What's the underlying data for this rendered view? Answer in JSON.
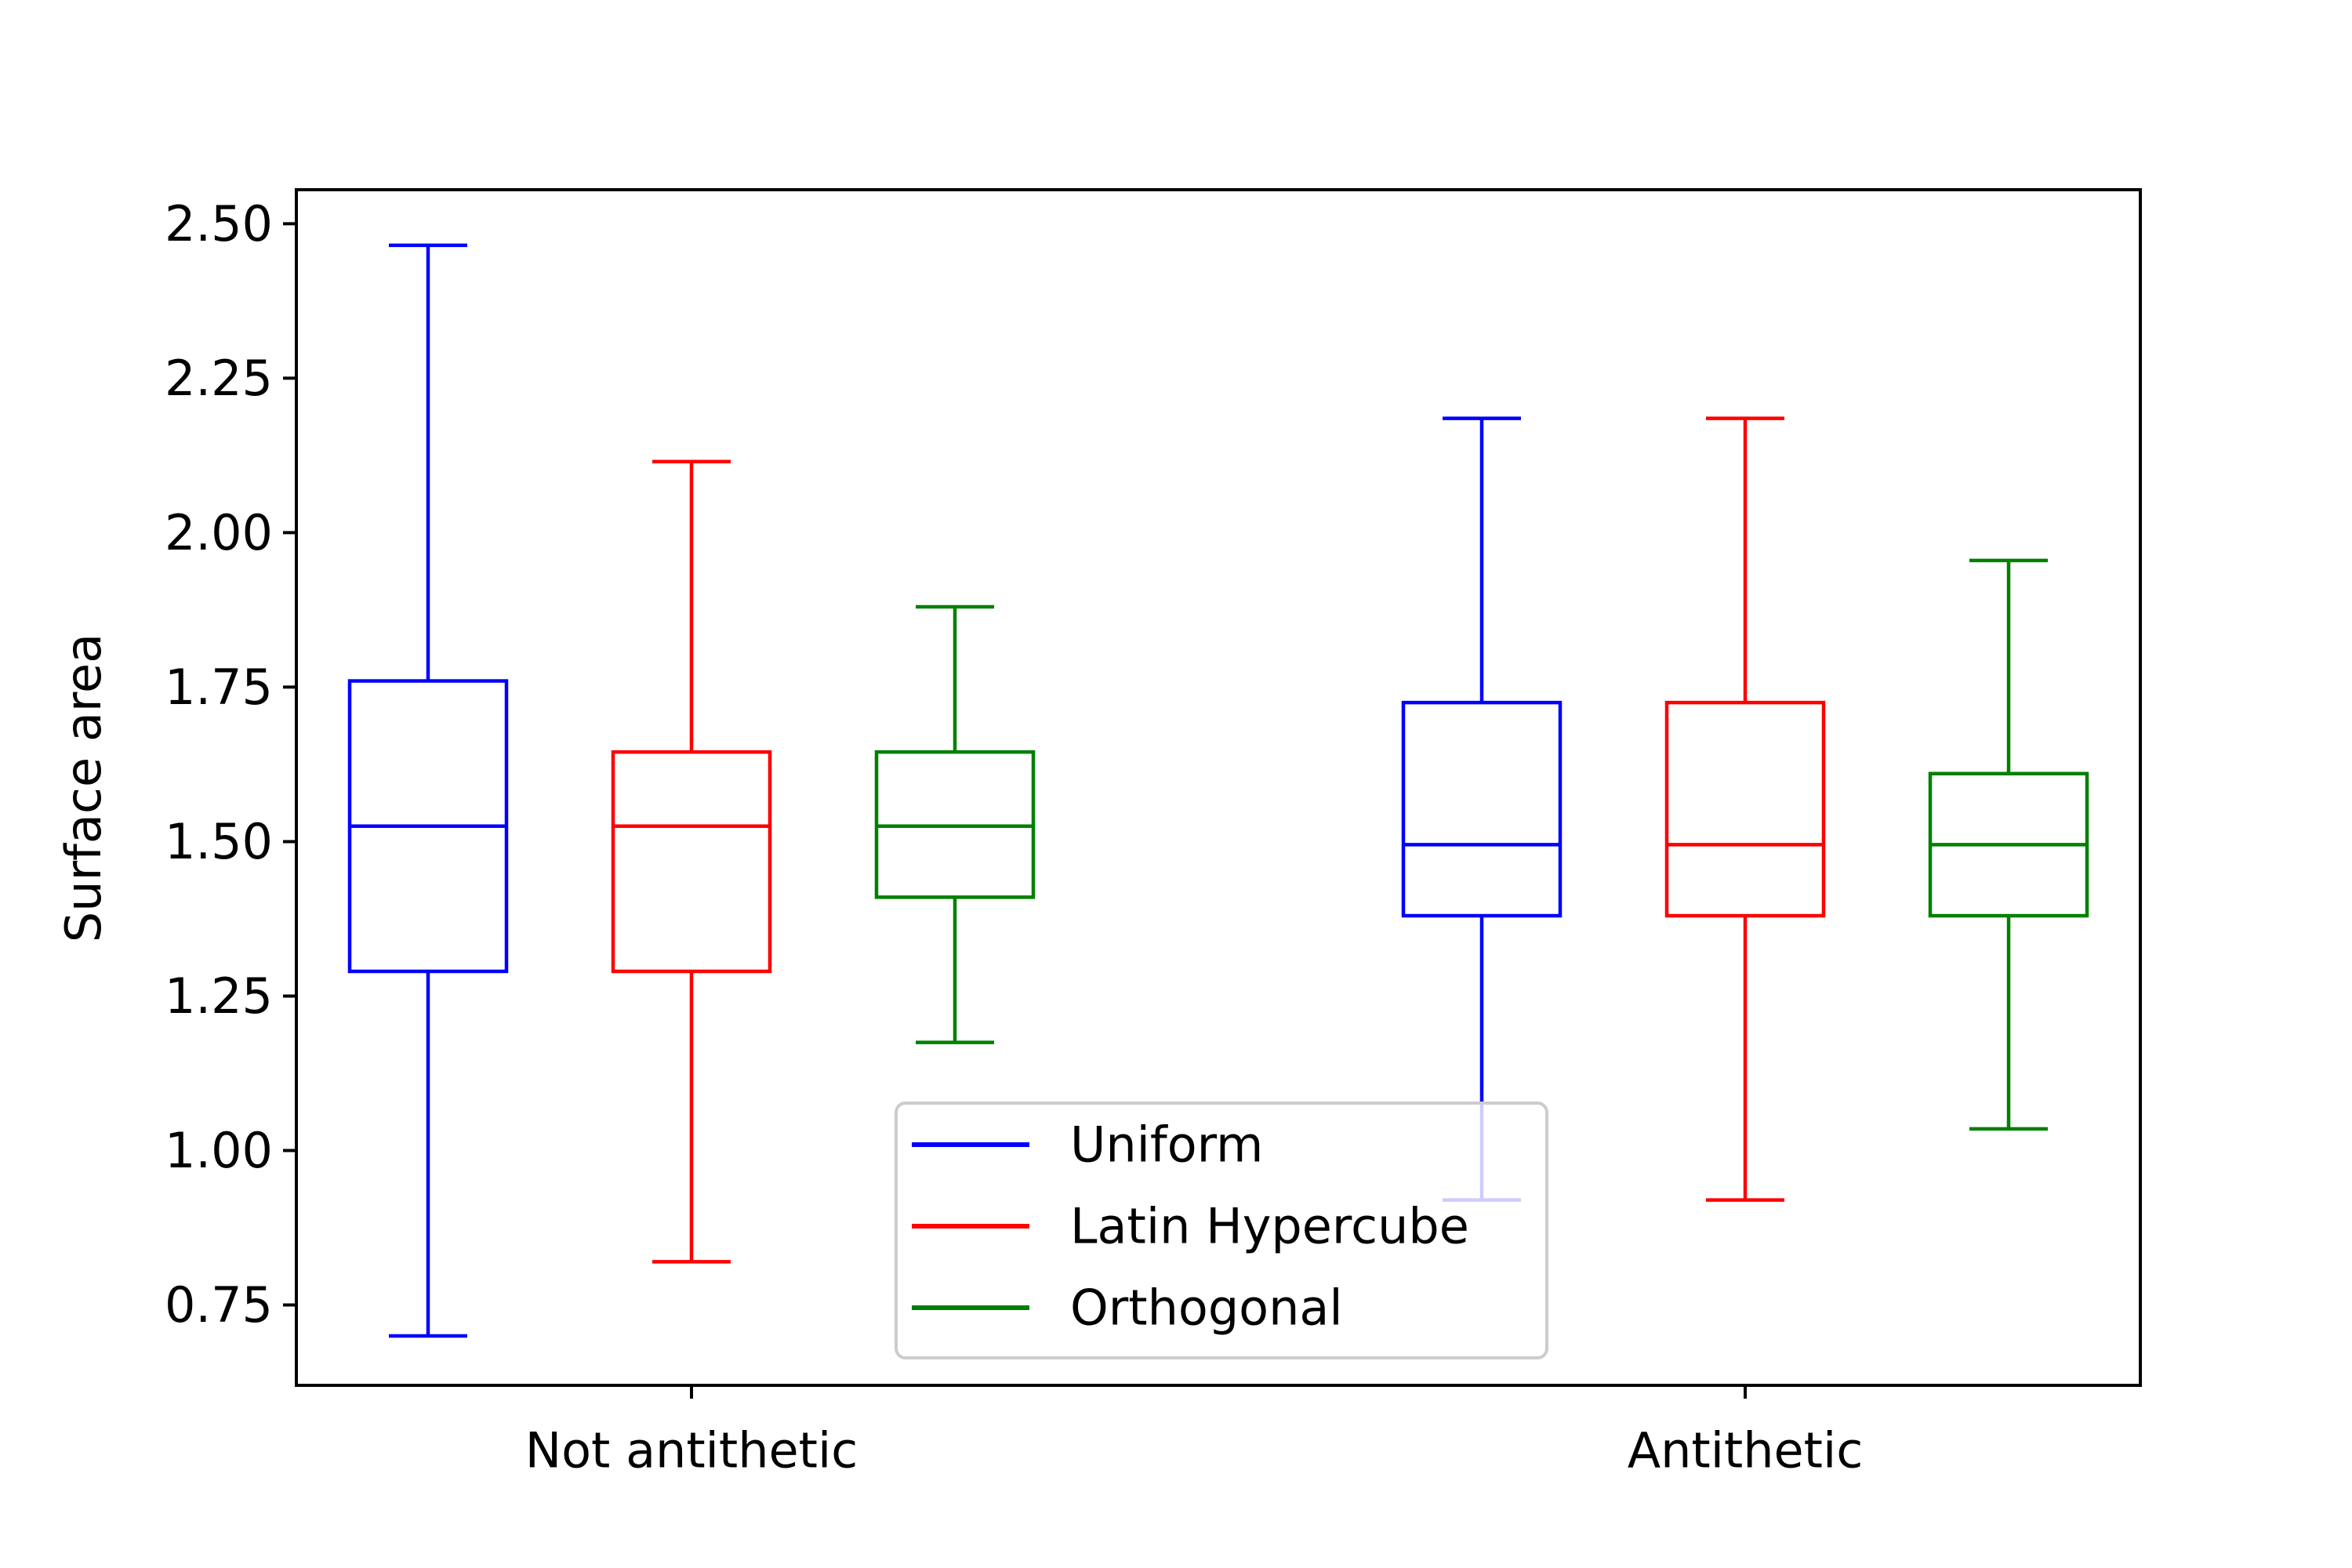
{
  "chart_data": {
    "type": "box",
    "ylabel": "Surface area",
    "xlabel": "",
    "title": "",
    "ylim": [
      0.62,
      2.555
    ],
    "yticks": [
      "0.75",
      "1.00",
      "1.25",
      "1.50",
      "1.75",
      "2.00",
      "2.25",
      "2.50"
    ],
    "categories": [
      "Not antithetic",
      "Antithetic"
    ],
    "grid": false,
    "legend_position": "lower center",
    "series": [
      {
        "name": "Uniform",
        "color": "#0000ff",
        "boxes": [
          {
            "whisker_low": 0.7,
            "q1": 1.29,
            "median": 1.525,
            "q3": 1.76,
            "whisker_high": 2.465
          },
          {
            "whisker_low": 0.92,
            "q1": 1.38,
            "median": 1.495,
            "q3": 1.725,
            "whisker_high": 2.185
          }
        ]
      },
      {
        "name": "Latin Hypercube",
        "color": "#ff0000",
        "boxes": [
          {
            "whisker_low": 0.82,
            "q1": 1.29,
            "median": 1.525,
            "q3": 1.645,
            "whisker_high": 2.115
          },
          {
            "whisker_low": 0.92,
            "q1": 1.38,
            "median": 1.495,
            "q3": 1.725,
            "whisker_high": 2.185
          }
        ]
      },
      {
        "name": "Orthogonal",
        "color": "#008000",
        "boxes": [
          {
            "whisker_low": 1.175,
            "q1": 1.41,
            "median": 1.525,
            "q3": 1.645,
            "whisker_high": 1.88
          },
          {
            "whisker_low": 1.035,
            "q1": 1.38,
            "median": 1.495,
            "q3": 1.61,
            "whisker_high": 1.955
          }
        ]
      }
    ]
  }
}
